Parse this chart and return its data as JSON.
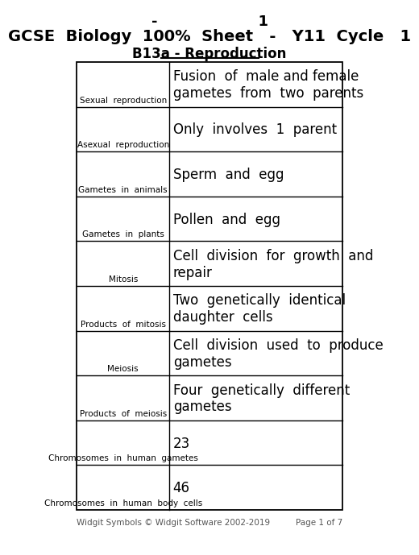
{
  "title_line1": "-                    1",
  "title_line2": "GCSE  Biology  100%  Sheet   -   Y11  Cycle   1",
  "title_line3": "B13a - Reproduction",
  "footer_left": "Widgit Symbols © Widgit Software 2002-2019",
  "footer_right": "Page 1 of 7",
  "bg_color": "#ffffff",
  "border_color": "#000000",
  "text_color": "#000000",
  "rows": [
    {
      "label": "Sexual  reproduction",
      "description": "Fusion  of  male and female\ngametes  from  two  parents"
    },
    {
      "label": "Asexual  reproduction",
      "description": "Only  involves  1  parent"
    },
    {
      "label": "Gametes  in  animals",
      "description": "Sperm  and  egg"
    },
    {
      "label": "Gametes  in  plants",
      "description": "Pollen  and  egg"
    },
    {
      "label": "Mitosis",
      "description": "Cell  division  for  growth  and\nrepair"
    },
    {
      "label": "Products  of  mitosis",
      "description": "Two  genetically  identical\ndaughter  cells"
    },
    {
      "label": "Meiosis",
      "description": "Cell  division  used  to  produce\ngametes"
    },
    {
      "label": "Products  of  meiosis",
      "description": "Four  genetically  different\ngametes"
    },
    {
      "label": "Chromosomes  in  human  gametes",
      "description": "23"
    },
    {
      "label": "Chromosomes  in  human  body  cells",
      "description": "46"
    }
  ],
  "title_fontsize": 13,
  "subtitle_fontsize": 14,
  "section_fontsize": 12,
  "desc_fontsize": 12,
  "label_fontsize": 7.5,
  "footer_fontsize": 7.5
}
